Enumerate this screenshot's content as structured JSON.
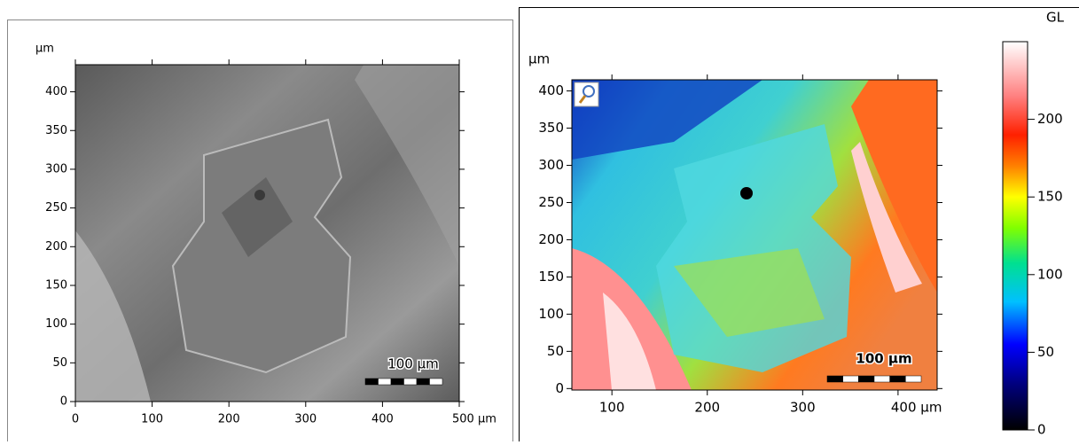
{
  "left_panel": {
    "unit": "µm",
    "xlim": [
      0,
      500
    ],
    "ylim": [
      0,
      435
    ],
    "xticks": [
      0,
      100,
      200,
      300,
      400,
      {
        "value": 500,
        "label": "500 µm"
      }
    ],
    "yticks": [
      0,
      50,
      100,
      150,
      200,
      250,
      300,
      350,
      400
    ],
    "scale_bar": "100 µm"
  },
  "right_panel": {
    "unit": "µm",
    "xlim": [
      58,
      441
    ],
    "ylim": [
      -2,
      415
    ],
    "xticks": [
      100,
      200,
      300,
      {
        "value": 400,
        "label": "400 µm"
      }
    ],
    "yticks": [
      0,
      50,
      100,
      150,
      200,
      250,
      300,
      350,
      400
    ],
    "scale_bar": "100 µm"
  },
  "colorbar": {
    "label": "GL",
    "lim": [
      0,
      250
    ],
    "ticks": [
      0,
      50,
      100,
      150,
      200
    ]
  }
}
